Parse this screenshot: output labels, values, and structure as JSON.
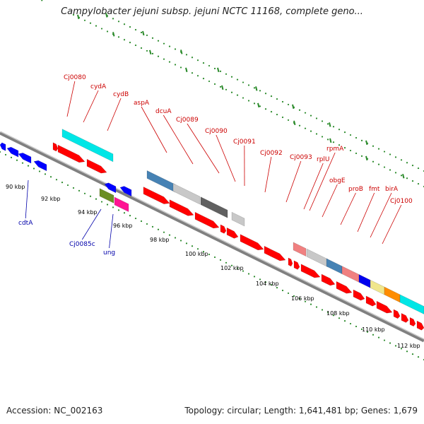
{
  "title": "Campylobacter jejuni subsp. jejuni NCTC 11168, complete geno...",
  "accession_label": "Accession: NC_002163",
  "summary_label": "Topology: circular; Length: 1,641,481 bp; Genes: 1,679",
  "colors": {
    "forward_cds": "#ff0000",
    "reverse_cds": "#0000ff",
    "forward_label": "#cc0000",
    "reverse_label": "#0000aa",
    "backbone": "#808080",
    "tick": "#2a8a2a"
  },
  "scale_labels": [
    "90 kbp",
    "92 kbp",
    "94 kbp",
    "96 kbp",
    "98 kbp",
    "100 kbp",
    "102 kbp",
    "104 kbp",
    "106 kbp",
    "108 kbp",
    "110 kbp",
    "112 kbp"
  ],
  "forward_labels": [
    "Cj0080",
    "cydA",
    "cydB",
    "aspA",
    "dcuA",
    "Cj0089",
    "Cj0090",
    "Cj0091",
    "Cj0092",
    "Cj0093",
    "rplU",
    "rpmA",
    "obgE",
    "proB",
    "fmt",
    "birA",
    "Cj0100"
  ],
  "reverse_labels": [
    "cdtA",
    "Cj0085c",
    "ung"
  ]
}
